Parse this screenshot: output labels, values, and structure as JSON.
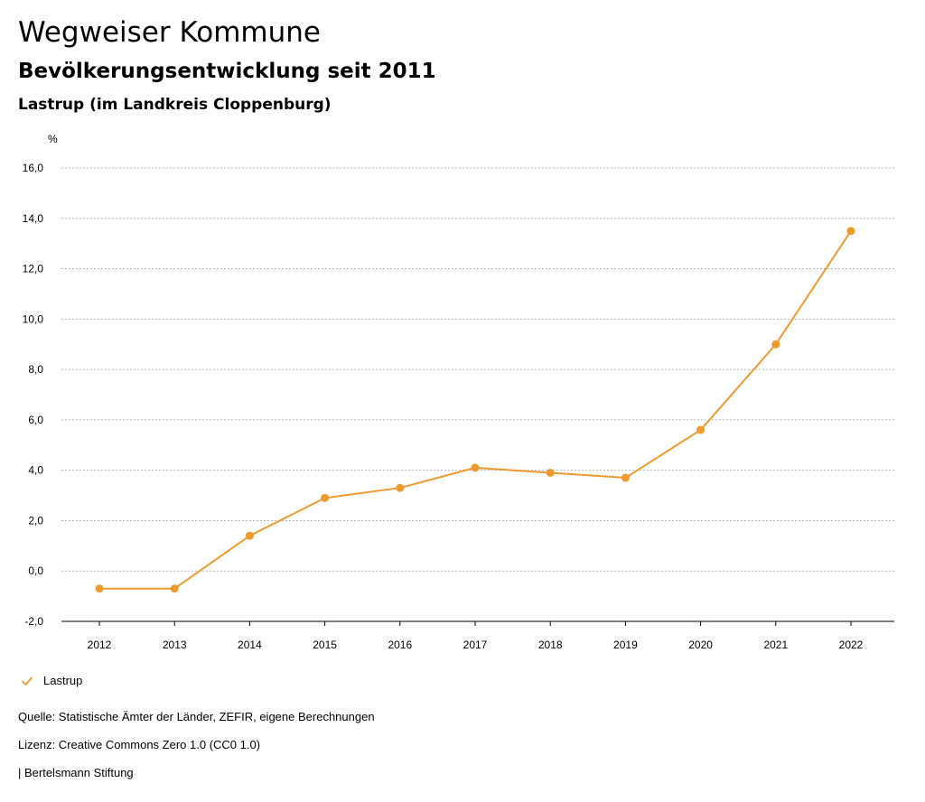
{
  "header": {
    "title": "Wegweiser Kommune",
    "subtitle": "Bevölkerungsentwicklung seit 2011",
    "region": "Lastrup (im Landkreis Cloppenburg)"
  },
  "colors": {
    "series": "#ef9a2e",
    "grid": "#b3b3b3",
    "axis": "#000000"
  },
  "legend": {
    "icon": "checkmark-icon",
    "label": "Lastrup"
  },
  "footer": {
    "source": "Quelle: Statistische Ämter der Länder, ZEFIR, eigene Berechnungen",
    "license": "Lizenz: Creative Commons Zero 1.0 (CC0 1.0)",
    "publisher": "| Bertelsmann Stiftung"
  },
  "chart_data": {
    "type": "line",
    "title": "Bevölkerungsentwicklung seit 2011",
    "ylabel": "%",
    "xlabel": "",
    "x": [
      "2012",
      "2013",
      "2014",
      "2015",
      "2016",
      "2017",
      "2018",
      "2019",
      "2020",
      "2021",
      "2022"
    ],
    "ylim": [
      -2,
      16
    ],
    "yticks": [
      -2,
      0,
      2,
      4,
      6,
      8,
      10,
      12,
      14,
      16
    ],
    "ytick_labels": [
      "-2,0",
      "0,0",
      "2,0",
      "4,0",
      "6,0",
      "8,0",
      "10,0",
      "12,0",
      "14,0",
      "16,0"
    ],
    "grid": true,
    "legend_position": "bottom-left",
    "series": [
      {
        "name": "Lastrup",
        "values": [
          -0.7,
          -0.7,
          1.4,
          2.9,
          3.3,
          4.1,
          3.9,
          3.7,
          5.6,
          9.0,
          13.5
        ]
      }
    ]
  }
}
